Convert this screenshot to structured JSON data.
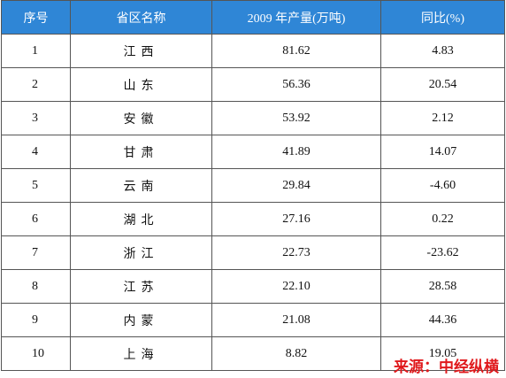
{
  "table": {
    "header": [
      "序号",
      "省区名称",
      "2009 年产量(万吨)",
      "同比(%)"
    ],
    "rows": [
      [
        "1",
        "江西",
        "81.62",
        "4.83"
      ],
      [
        "2",
        "山东",
        "56.36",
        "20.54"
      ],
      [
        "3",
        "安徽",
        "53.92",
        "2.12"
      ],
      [
        "4",
        "甘肃",
        "41.89",
        "14.07"
      ],
      [
        "5",
        "云南",
        "29.84",
        "-4.60"
      ],
      [
        "6",
        "湖北",
        "27.16",
        "0.22"
      ],
      [
        "7",
        "浙江",
        "22.73",
        "-23.62"
      ],
      [
        "8",
        "江苏",
        "22.10",
        "28.58"
      ],
      [
        "9",
        "内蒙",
        "21.08",
        "44.36"
      ],
      [
        "10",
        "上海",
        "8.82",
        "19.05"
      ]
    ]
  },
  "source": "来源：中经纵横"
}
